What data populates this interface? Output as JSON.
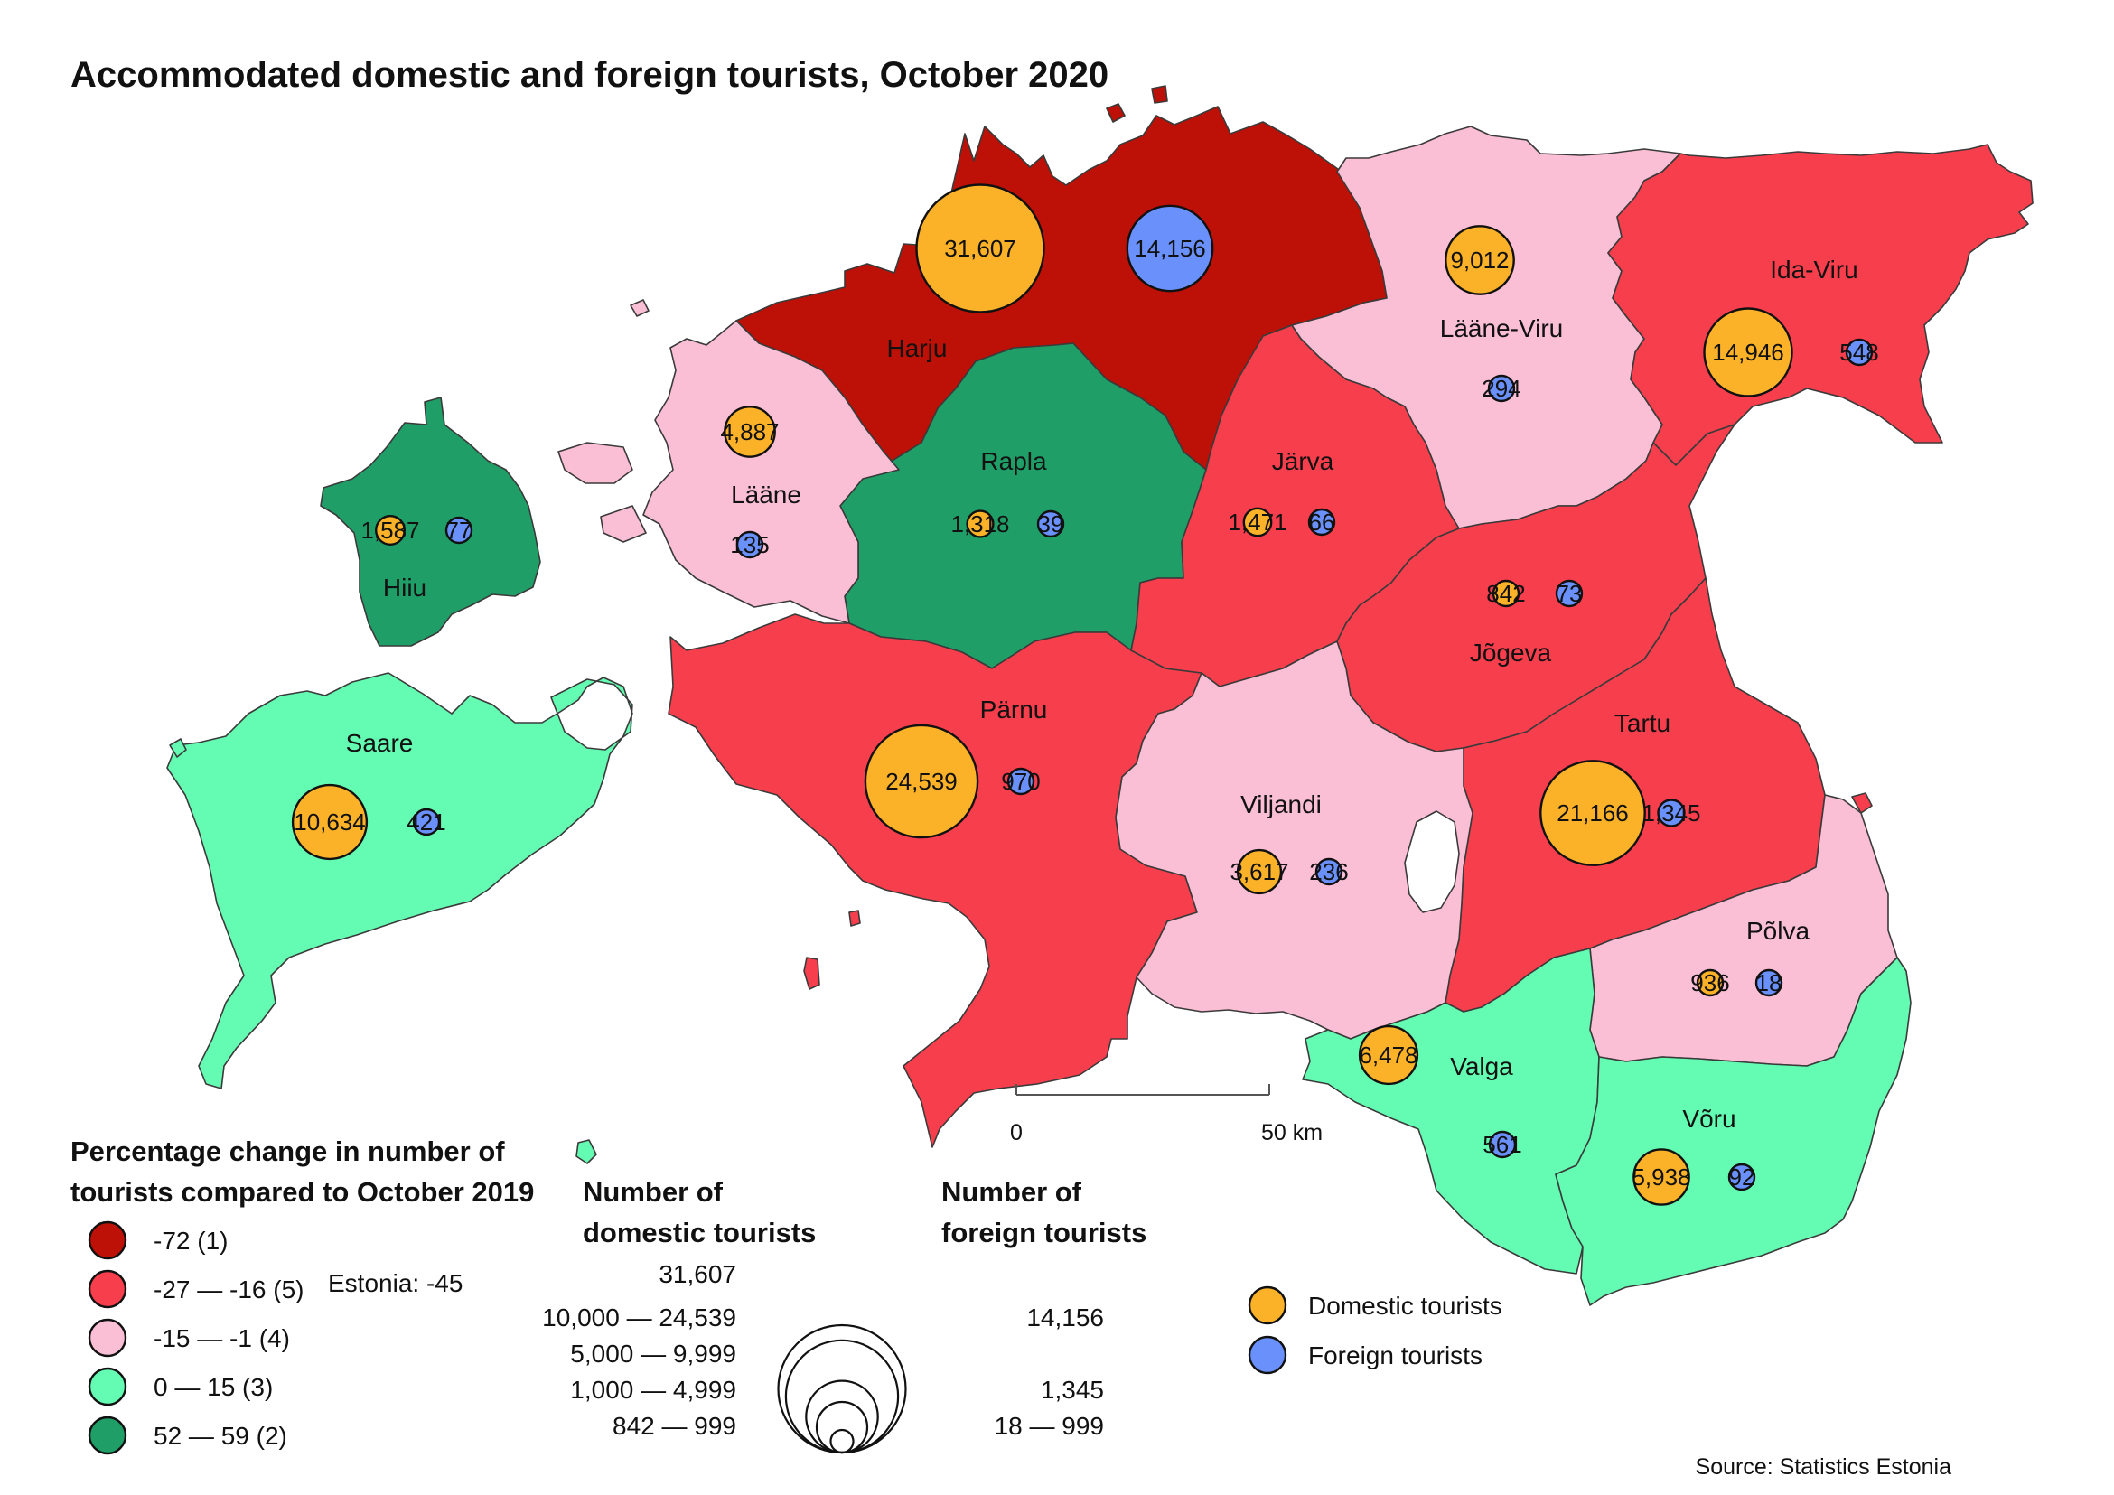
{
  "title": "Accommodated domestic and foreign tourists, October 2020",
  "source": "Source: Statistics Estonia",
  "colors": {
    "class_1": "#bd1006",
    "class_2": "#f73e4d",
    "class_3": "#fbbfd5",
    "class_4": "#64fcb2",
    "class_5": "#209e68",
    "domestic": "#fbb228",
    "foreign": "#6a91fb"
  },
  "counties": [
    {
      "name": "Harju",
      "class": "class_1",
      "domestic": 31607,
      "foreign": 14156,
      "domestic_label": "31,607",
      "foreign_label": "14,156"
    },
    {
      "name": "Ida-Viru",
      "class": "class_2",
      "domestic": 14946,
      "foreign": 548,
      "domestic_label": "14,946",
      "foreign_label": "548"
    },
    {
      "name": "Järva",
      "class": "class_2",
      "domestic": 1471,
      "foreign": 66,
      "domestic_label": "1,471",
      "foreign_label": "66"
    },
    {
      "name": "Jõgeva",
      "class": "class_2",
      "domestic": 842,
      "foreign": 73,
      "domestic_label": "842",
      "foreign_label": "73"
    },
    {
      "name": "Pärnu",
      "class": "class_2",
      "domestic": 24539,
      "foreign": 970,
      "domestic_label": "24,539",
      "foreign_label": "970"
    },
    {
      "name": "Tartu",
      "class": "class_2",
      "domestic": 21166,
      "foreign": 1345,
      "domestic_label": "21,166",
      "foreign_label": "1,345"
    },
    {
      "name": "Lääne-Viru",
      "class": "class_3",
      "domestic": 9012,
      "foreign": 294,
      "domestic_label": "9,012",
      "foreign_label": "294"
    },
    {
      "name": "Lääne",
      "class": "class_3",
      "domestic": 4887,
      "foreign": 135,
      "domestic_label": "4,887",
      "foreign_label": "135"
    },
    {
      "name": "Viljandi",
      "class": "class_3",
      "domestic": 3617,
      "foreign": 236,
      "domestic_label": "3,617",
      "foreign_label": "236"
    },
    {
      "name": "Põlva",
      "class": "class_3",
      "domestic": 936,
      "foreign": 18,
      "domestic_label": "936",
      "foreign_label": "18"
    },
    {
      "name": "Saare",
      "class": "class_4",
      "domestic": 10634,
      "foreign": 421,
      "domestic_label": "10,634",
      "foreign_label": "421"
    },
    {
      "name": "Valga",
      "class": "class_4",
      "domestic": 6478,
      "foreign": 561,
      "domestic_label": "6,478",
      "foreign_label": "561"
    },
    {
      "name": "Võru",
      "class": "class_4",
      "domestic": 5938,
      "foreign": 92,
      "domestic_label": "5,938",
      "foreign_label": "92"
    },
    {
      "name": "Hiiu",
      "class": "class_5",
      "domestic": 1587,
      "foreign": 77,
      "domestic_label": "1,587",
      "foreign_label": "77"
    },
    {
      "name": "Rapla",
      "class": "class_5",
      "domestic": 1318,
      "foreign": 39,
      "domestic_label": "1,318",
      "foreign_label": "39"
    }
  ],
  "change_legend": {
    "title_line1": "Percentage change in number of",
    "title_line2": "tourists compared to October 2019",
    "estonia_note": "Estonia: -45",
    "items": [
      {
        "class": "class_1",
        "label": "-72 (1)"
      },
      {
        "class": "class_2",
        "label": "-27 — -16 (5)"
      },
      {
        "class": "class_3",
        "label": "-15 —  -1 (4)"
      },
      {
        "class": "class_4",
        "label": "0 —  15 (3)"
      },
      {
        "class": "class_5",
        "label": "52 —  59 (2)"
      }
    ]
  },
  "size_legend": {
    "domestic_title_line1": "Number of",
    "domestic_title_line2": "domestic tourists",
    "foreign_title_line1": "Number of",
    "foreign_title_line2": "foreign tourists",
    "domestic_values": [
      31607,
      24539,
      9999,
      4999,
      999
    ],
    "domestic_labels": [
      "31,607",
      "10,000 — 24,539",
      "5,000 —   9,999",
      "1,000 —   4,999",
      "842 —       999"
    ],
    "foreign_labels": [
      "14,156",
      "1,345",
      "18 —       999"
    ]
  },
  "symbol_legend": {
    "domestic": "Domestic tourists",
    "foreign": "Foreign tourists"
  },
  "scale_bar": {
    "start": "0",
    "end": "50 km"
  }
}
